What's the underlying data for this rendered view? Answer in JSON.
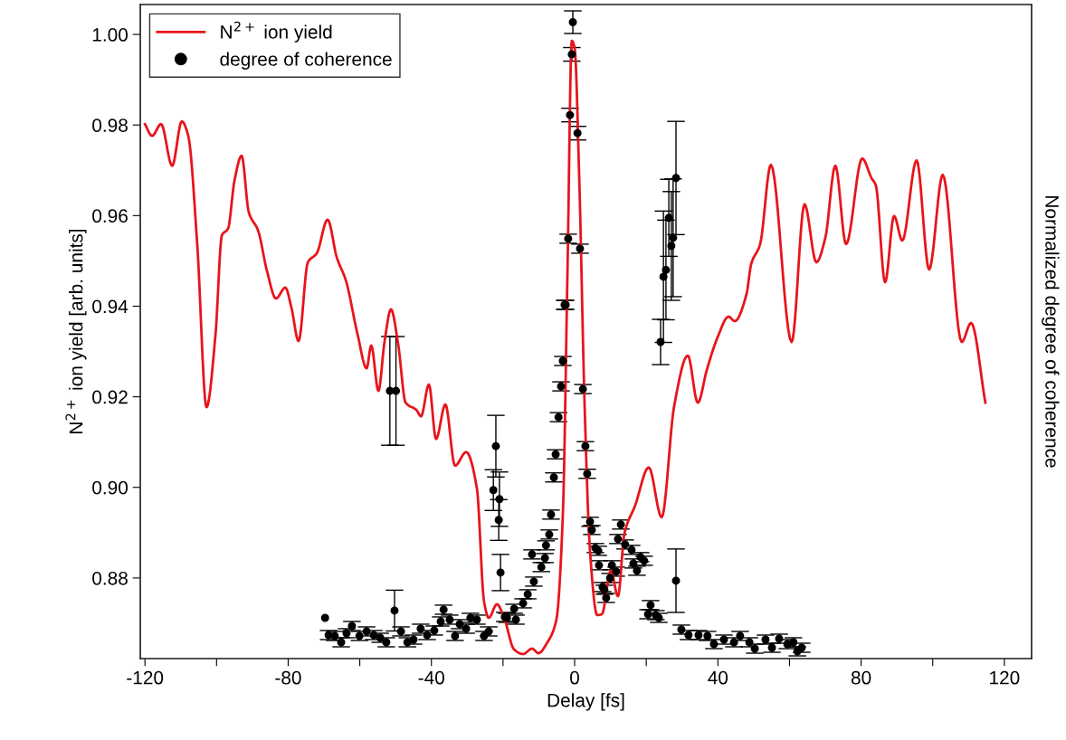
{
  "chart_data": {
    "type": "line",
    "xlabel": "Delay [fs]",
    "ylabel": "N$^{2+}$ ion yield [arb. units]",
    "y2label": "Normalized degree of coherence",
    "xlim": [
      -121.3,
      127.6
    ],
    "ylim": [
      0.8622,
      1.0066
    ],
    "xticks": [
      -120,
      {
        "value": -100,
        "label": null
      },
      -80,
      {
        "value": -60,
        "label": null
      },
      -40,
      {
        "value": -20,
        "label": null
      },
      0,
      {
        "value": 20,
        "label": null
      },
      40,
      {
        "value": 60,
        "label": null
      },
      80,
      {
        "value": 100,
        "label": null
      },
      120
    ],
    "yticks": [
      {
        "value": 0.88,
        "label": "0.88"
      },
      {
        "value": 0.9,
        "label": "0.90"
      },
      {
        "value": 0.92,
        "label": "0.92"
      },
      {
        "value": 0.94,
        "label": "0.94"
      },
      {
        "value": 0.96,
        "label": "0.96"
      },
      {
        "value": 0.98,
        "label": "0.98"
      },
      {
        "value": 1.0,
        "label": "1.00"
      }
    ],
    "grid": false,
    "legend": "top left",
    "series": [
      {
        "name": "N$^{2+}$ ion yield",
        "color": "#e8141b",
        "marker": "none",
        "line_style": "solid",
        "x": [
          -120,
          -118,
          -115.5,
          -112.4,
          -109.7,
          -107.9,
          -105.4,
          -102.8,
          -100.3,
          -98.5,
          -96.8,
          -95,
          -93,
          -91,
          -88.4,
          -85.9,
          -83.4,
          -80.8,
          -79.1,
          -77.1,
          -74.5,
          -72,
          -69,
          -66.4,
          -63.9,
          -60.6,
          -58.1,
          -56.8,
          -54.8,
          -53.1,
          -51.3,
          -49.3,
          -47.2,
          -44.2,
          -42.9,
          -40.7,
          -38.7,
          -36.1,
          -33.4,
          -30.3,
          -27.3,
          -25.3,
          -24,
          -21.7,
          -19.7,
          -16.9,
          -14.4,
          -11.9,
          -10.1,
          -7.6,
          -5.1,
          -3.3,
          -2,
          -0.8,
          0,
          1.3,
          2.8,
          4.3,
          6.3,
          7.6,
          10.1,
          12.1,
          13.9,
          16.9,
          20.7,
          24.3,
          27.8,
          31.6,
          34.4,
          36.9,
          39.9,
          43,
          44.7,
          48,
          49.3,
          51.8,
          54.8,
          60.6,
          64.2,
          67.5,
          70,
          72.8,
          75.8,
          80.3,
          82.9,
          84.1,
          86.7,
          89.2,
          91.5,
          95.5,
          99,
          102.8,
          108.1,
          110.7,
          114.7
        ],
        "values": [
          0.9802,
          0.9776,
          0.9802,
          0.971,
          0.9808,
          0.9776,
          0.9537,
          0.9177,
          0.9337,
          0.9557,
          0.9571,
          0.9677,
          0.9732,
          0.9607,
          0.9567,
          0.9477,
          0.9417,
          0.9441,
          0.9397,
          0.9323,
          0.9497,
          0.9517,
          0.9591,
          0.9507,
          0.9457,
          0.9337,
          0.9263,
          0.9313,
          0.9213,
          0.9321,
          0.9393,
          0.9317,
          0.9187,
          0.9171,
          0.9157,
          0.9227,
          0.9107,
          0.9183,
          0.9048,
          0.9078,
          0.8998,
          0.8748,
          0.8712,
          0.8742,
          0.8712,
          0.8642,
          0.8632,
          0.8644,
          0.8634,
          0.8658,
          0.8708,
          0.8938,
          0.9477,
          0.9986,
          0.997,
          0.9677,
          0.9177,
          0.8858,
          0.8718,
          0.872,
          0.8816,
          0.876,
          0.8898,
          0.896,
          0.9044,
          0.8934,
          0.918,
          0.9291,
          0.9187,
          0.9259,
          0.9331,
          0.9377,
          0.9367,
          0.9427,
          0.9493,
          0.9537,
          0.9712,
          0.9321,
          0.9625,
          0.9497,
          0.9551,
          0.971,
          0.9537,
          0.9726,
          0.9683,
          0.9667,
          0.9453,
          0.9599,
          0.9545,
          0.9722,
          0.9481,
          0.969,
          0.9321,
          0.9363,
          0.9187
        ]
      },
      {
        "name": "degree of coherence",
        "type": "scatter",
        "color": "#000000",
        "marker": "circle",
        "x": [
          -69.7,
          -68.7,
          -67,
          -65.2,
          -63.7,
          -62.2,
          -60.1,
          -58.1,
          -56.1,
          -54.3,
          -52.6,
          -51.6,
          -49.9,
          -50.3,
          -48.5,
          -46.7,
          -45,
          -43,
          -41.2,
          -39.2,
          -37.4,
          -36.6,
          -34.9,
          -33.4,
          -32.1,
          -30.3,
          -29.1,
          -27.3,
          -25.3,
          -24,
          -22.7,
          -22,
          -21.2,
          -21,
          -20.7,
          -19.5,
          -18.9,
          -16.9,
          -16.4,
          -14.4,
          -13.1,
          -11.9,
          -11.4,
          -9.3,
          -8.3,
          -8,
          -7.1,
          -6.6,
          -5.8,
          -5.3,
          -4.5,
          -3.8,
          -3.3,
          -2.8,
          -2.5,
          -1.8,
          -1.3,
          -0.8,
          -0.5,
          0.8,
          1.5,
          2.3,
          3,
          3.5,
          4.3,
          4.8,
          5.8,
          6.6,
          6.8,
          7.8,
          8.3,
          8.8,
          9.9,
          10.4,
          11.6,
          12.1,
          12.9,
          14.1,
          15.9,
          16.4,
          17.4,
          18.4,
          19.4,
          20.5,
          21.2,
          22.7,
          23.5,
          24,
          24.8,
          25.5,
          26.3,
          27,
          27.5,
          28.3,
          28.3,
          29.8,
          31.8,
          34.6,
          37.1,
          38.9,
          41.7,
          44.5,
          46.2,
          48.8,
          50.3,
          53.3,
          55.1,
          57.1,
          59.4,
          61.1,
          62.2,
          63.4
        ],
        "values": [
          0.8712,
          0.8674,
          0.8672,
          0.8658,
          0.8678,
          0.8694,
          0.8672,
          0.8682,
          0.8674,
          0.8668,
          0.8658,
          0.9213,
          0.9213,
          0.8728,
          0.8682,
          0.8658,
          0.8664,
          0.8688,
          0.8674,
          0.8684,
          0.8704,
          0.873,
          0.8708,
          0.8672,
          0.8698,
          0.8688,
          0.8712,
          0.8708,
          0.8672,
          0.8682,
          0.8994,
          0.9091,
          0.8928,
          0.8974,
          0.8812,
          0.8714,
          0.8712,
          0.8732,
          0.8708,
          0.8744,
          0.8764,
          0.8852,
          0.8792,
          0.8824,
          0.8844,
          0.8872,
          0.8896,
          0.894,
          0.9022,
          0.9073,
          0.9155,
          0.9223,
          0.9279,
          0.9403,
          0.9403,
          0.9549,
          0.9822,
          0.9956,
          1.0027,
          0.9782,
          0.9527,
          0.9217,
          0.9091,
          0.903,
          0.8924,
          0.8906,
          0.8866,
          0.886,
          0.8828,
          0.878,
          0.8774,
          0.8756,
          0.88,
          0.8828,
          0.8814,
          0.8886,
          0.8918,
          0.8874,
          0.8862,
          0.8832,
          0.8816,
          0.8846,
          0.8838,
          0.872,
          0.874,
          0.8718,
          0.8712,
          0.9321,
          0.9465,
          0.948,
          0.9595,
          0.9533,
          0.9551,
          0.9683,
          0.8794,
          0.8686,
          0.8674,
          0.8674,
          0.8672,
          0.8654,
          0.8664,
          0.8658,
          0.8672,
          0.8658,
          0.8644,
          0.8664,
          0.8646,
          0.8666,
          0.8654,
          0.8658,
          0.8638,
          0.8646
        ],
        "errors": [
          null,
          0.001,
          0.001,
          0.001,
          0.001,
          0.001,
          0.001,
          0.001,
          0.001,
          0.001,
          0.001,
          0.012,
          0.012,
          0.0045,
          0.001,
          0.001,
          0.001,
          0.001,
          0.001,
          0.001,
          0.001,
          0.001,
          0.001,
          0.001,
          0.001,
          0.001,
          0.001,
          0.001,
          0.001,
          0.001,
          0.0045,
          0.0068,
          0.0045,
          0.006,
          0.004,
          0.001,
          0.001,
          0.001,
          0.001,
          0.001,
          0.001,
          0.001,
          0.001,
          0.001,
          0.001,
          0.001,
          0.001,
          0.001,
          0.001,
          0.001,
          0.001,
          0.001,
          0.001,
          0.001,
          0.001,
          0.001,
          0.0015,
          0.0015,
          0.0025,
          0.0015,
          0.001,
          0.001,
          0.001,
          0.001,
          0.001,
          0.001,
          0.001,
          0.001,
          0.001,
          0.001,
          0.001,
          0.001,
          0.001,
          0.001,
          0.001,
          0.001,
          0.001,
          0.001,
          0.001,
          0.001,
          0.001,
          0.001,
          0.001,
          0.001,
          0.001,
          0.001,
          0.001,
          0.005,
          0.0145,
          0.011,
          0.0085,
          0.012,
          0.013,
          0.0125,
          0.007,
          0.001,
          0.001,
          0.001,
          0.001,
          0.001,
          0.001,
          0.001,
          0.001,
          0.001,
          0.001,
          0.001,
          0.001,
          0.001,
          0.001,
          0.001,
          0.001,
          0.001
        ]
      }
    ]
  }
}
